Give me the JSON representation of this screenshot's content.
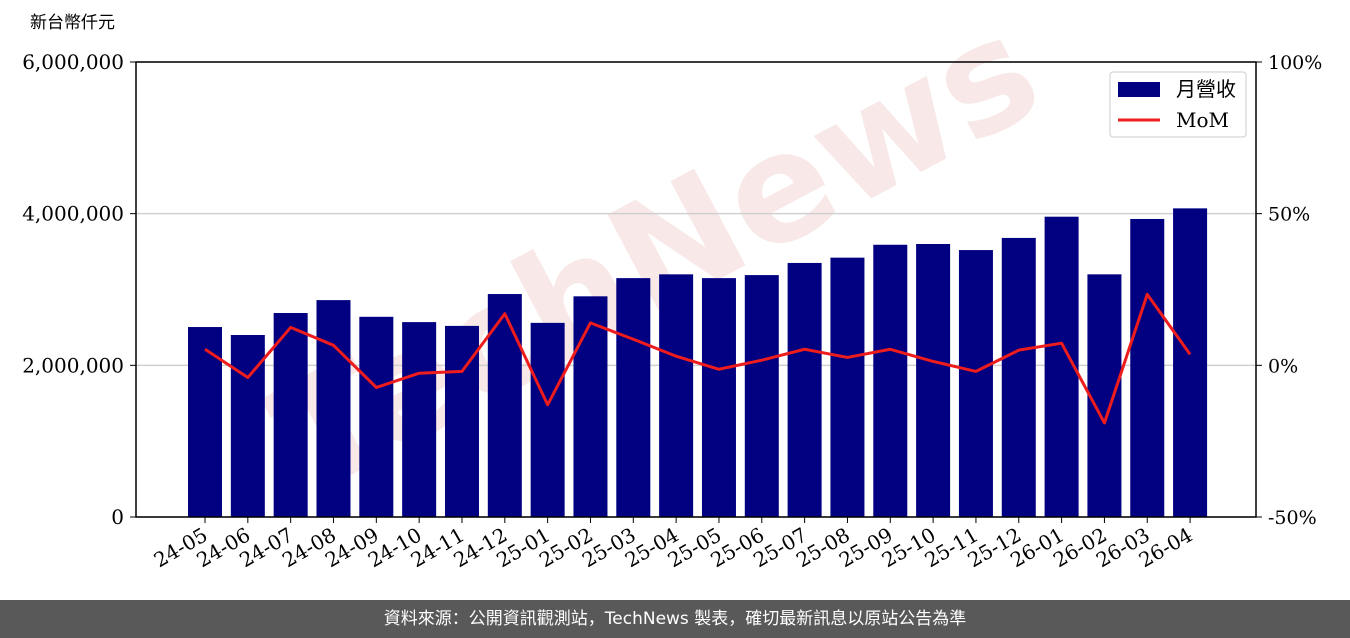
{
  "chart_data": {
    "type": "bar-line",
    "watermark": "TechNews",
    "y_label": "新台幣仟元",
    "categories": [
      "24-05",
      "24-06",
      "24-07",
      "24-08",
      "24-09",
      "24-10",
      "24-11",
      "24-12",
      "25-01",
      "25-02",
      "25-03",
      "25-04",
      "25-05",
      "25-06",
      "25-07",
      "25-08",
      "25-09",
      "25-10",
      "25-11",
      "25-12",
      "26-01",
      "26-02",
      "26-03",
      "26-04"
    ],
    "series": [
      {
        "name": "月營收",
        "color": "#000080",
        "type": "bar",
        "values": [
          2505000,
          2400000,
          2690000,
          2860000,
          2640000,
          2570000,
          2520000,
          2940000,
          2560000,
          2910000,
          3150000,
          3200000,
          3150000,
          3190000,
          3350000,
          3420000,
          3590000,
          3600000,
          3520000,
          3680000,
          3960000,
          3200000,
          3930000,
          4070000
        ]
      },
      {
        "name": "MoM",
        "color": "#ee1c1c",
        "type": "line",
        "axis": "y2",
        "values": [
          5.3,
          -4,
          12.5,
          6.6,
          -7.3,
          -2.6,
          -2,
          17,
          -13,
          14,
          8.6,
          3,
          -1.3,
          1.7,
          5.3,
          2.6,
          5.3,
          1.3,
          -2,
          5,
          7.3,
          -19,
          23.4,
          3.6
        ]
      }
    ],
    "ylim": [
      0,
      6000000
    ],
    "yticks": [
      {
        "value": 0,
        "label": "0"
      },
      {
        "value": 2000000,
        "label": "2,000,000"
      },
      {
        "value": 4000000,
        "label": "4,000,000"
      },
      {
        "value": 6000000,
        "label": "6,000,000"
      }
    ],
    "y2lim": [
      -50,
      100
    ],
    "y2ticks": [
      {
        "value": -50,
        "label": "-50%"
      },
      {
        "value": 0,
        "label": "0%"
      },
      {
        "value": 50,
        "label": "50%"
      },
      {
        "value": 100,
        "label": "100%"
      }
    ],
    "grid": true,
    "legend": "upper right"
  },
  "footer": "資料來源：公開資訊觀測站，TechNews 製表，確切最新訊息以原站公告為準"
}
